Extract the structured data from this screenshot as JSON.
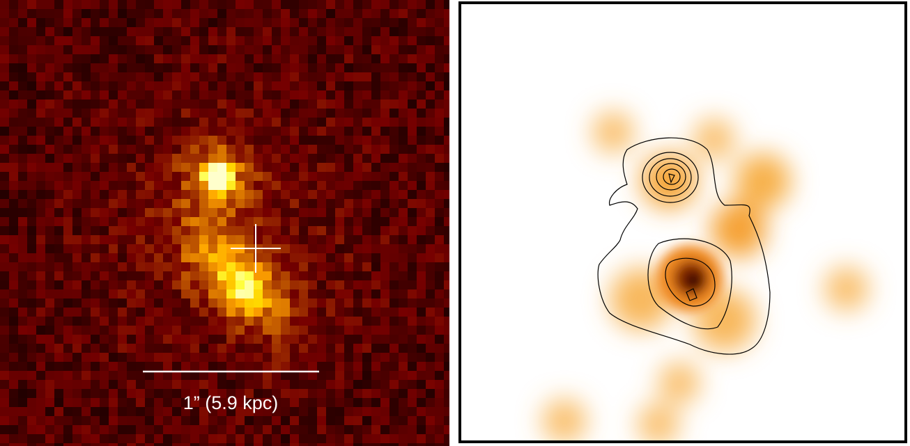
{
  "scale_bar": {
    "label": "1” (5.9 kpc)"
  }
}
